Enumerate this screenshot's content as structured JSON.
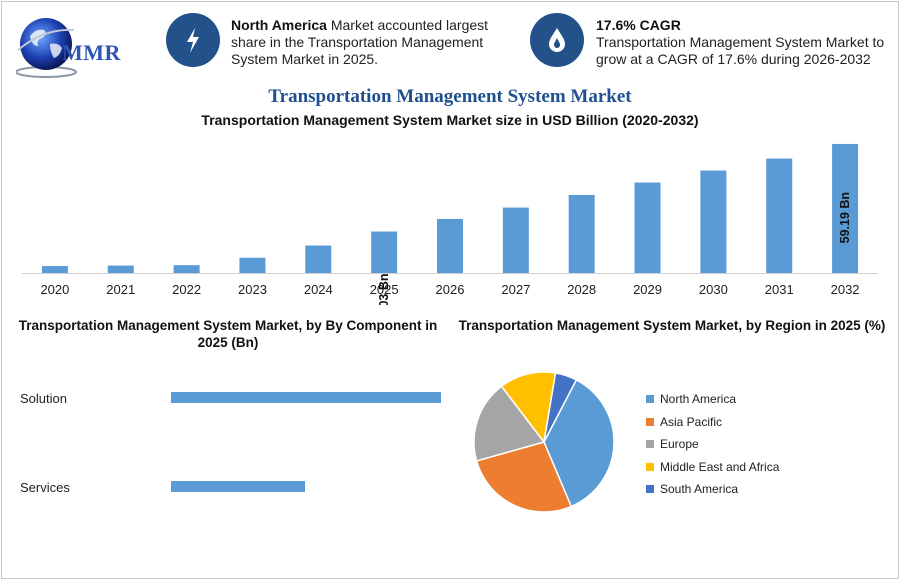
{
  "logo": {
    "text": "MMR"
  },
  "highlights": [
    {
      "icon": "lightning-icon",
      "bold": "North America",
      "text": " Market accounted largest share in the Transportation Management System Market in 2025."
    },
    {
      "icon": "drop-icon",
      "bold": "17.6% CAGR",
      "text": "Transportation Management System Market to grow at a CAGR of 17.6% during 2026-2032"
    }
  ],
  "title": "Transportation Management System Market",
  "chart_data": [
    {
      "type": "bar",
      "title": "Transportation Management System Market size in USD Billion (2020-2032)",
      "categories": [
        "2020",
        "2021",
        "2022",
        "2023",
        "2024",
        "2025",
        "2026",
        "2027",
        "2028",
        "2029",
        "2030",
        "2031",
        "2032"
      ],
      "values": [
        3.2,
        3.4,
        3.6,
        7.0,
        12.6,
        19.03,
        24.8,
        30.0,
        35.8,
        41.5,
        47.0,
        52.5,
        59.19
      ],
      "data_labels": [
        {
          "index": 5,
          "text": "19.03 Bn"
        },
        {
          "index": 12,
          "text": "59.19 Bn"
        }
      ],
      "ylim": [
        0,
        61
      ],
      "color": "#5b9bd5"
    },
    {
      "type": "bar",
      "orientation": "horizontal",
      "title": "Transportation Management System Market, by By Component in 2025 (Bn)",
      "categories": [
        "Solution",
        "Services"
      ],
      "values": [
        13.5,
        6.7
      ],
      "color": "#5b9bd5"
    },
    {
      "type": "pie",
      "title": "Transportation Management System Market, by Region in 2025 (%)",
      "categories": [
        "North America",
        "Asia Pacific",
        "Europe",
        "Middle East and Africa",
        "South America"
      ],
      "values": [
        36,
        27,
        19,
        13,
        5
      ],
      "colors": [
        "#5b9bd5",
        "#ed7d31",
        "#a5a5a5",
        "#ffc000",
        "#4472c4"
      ]
    }
  ]
}
